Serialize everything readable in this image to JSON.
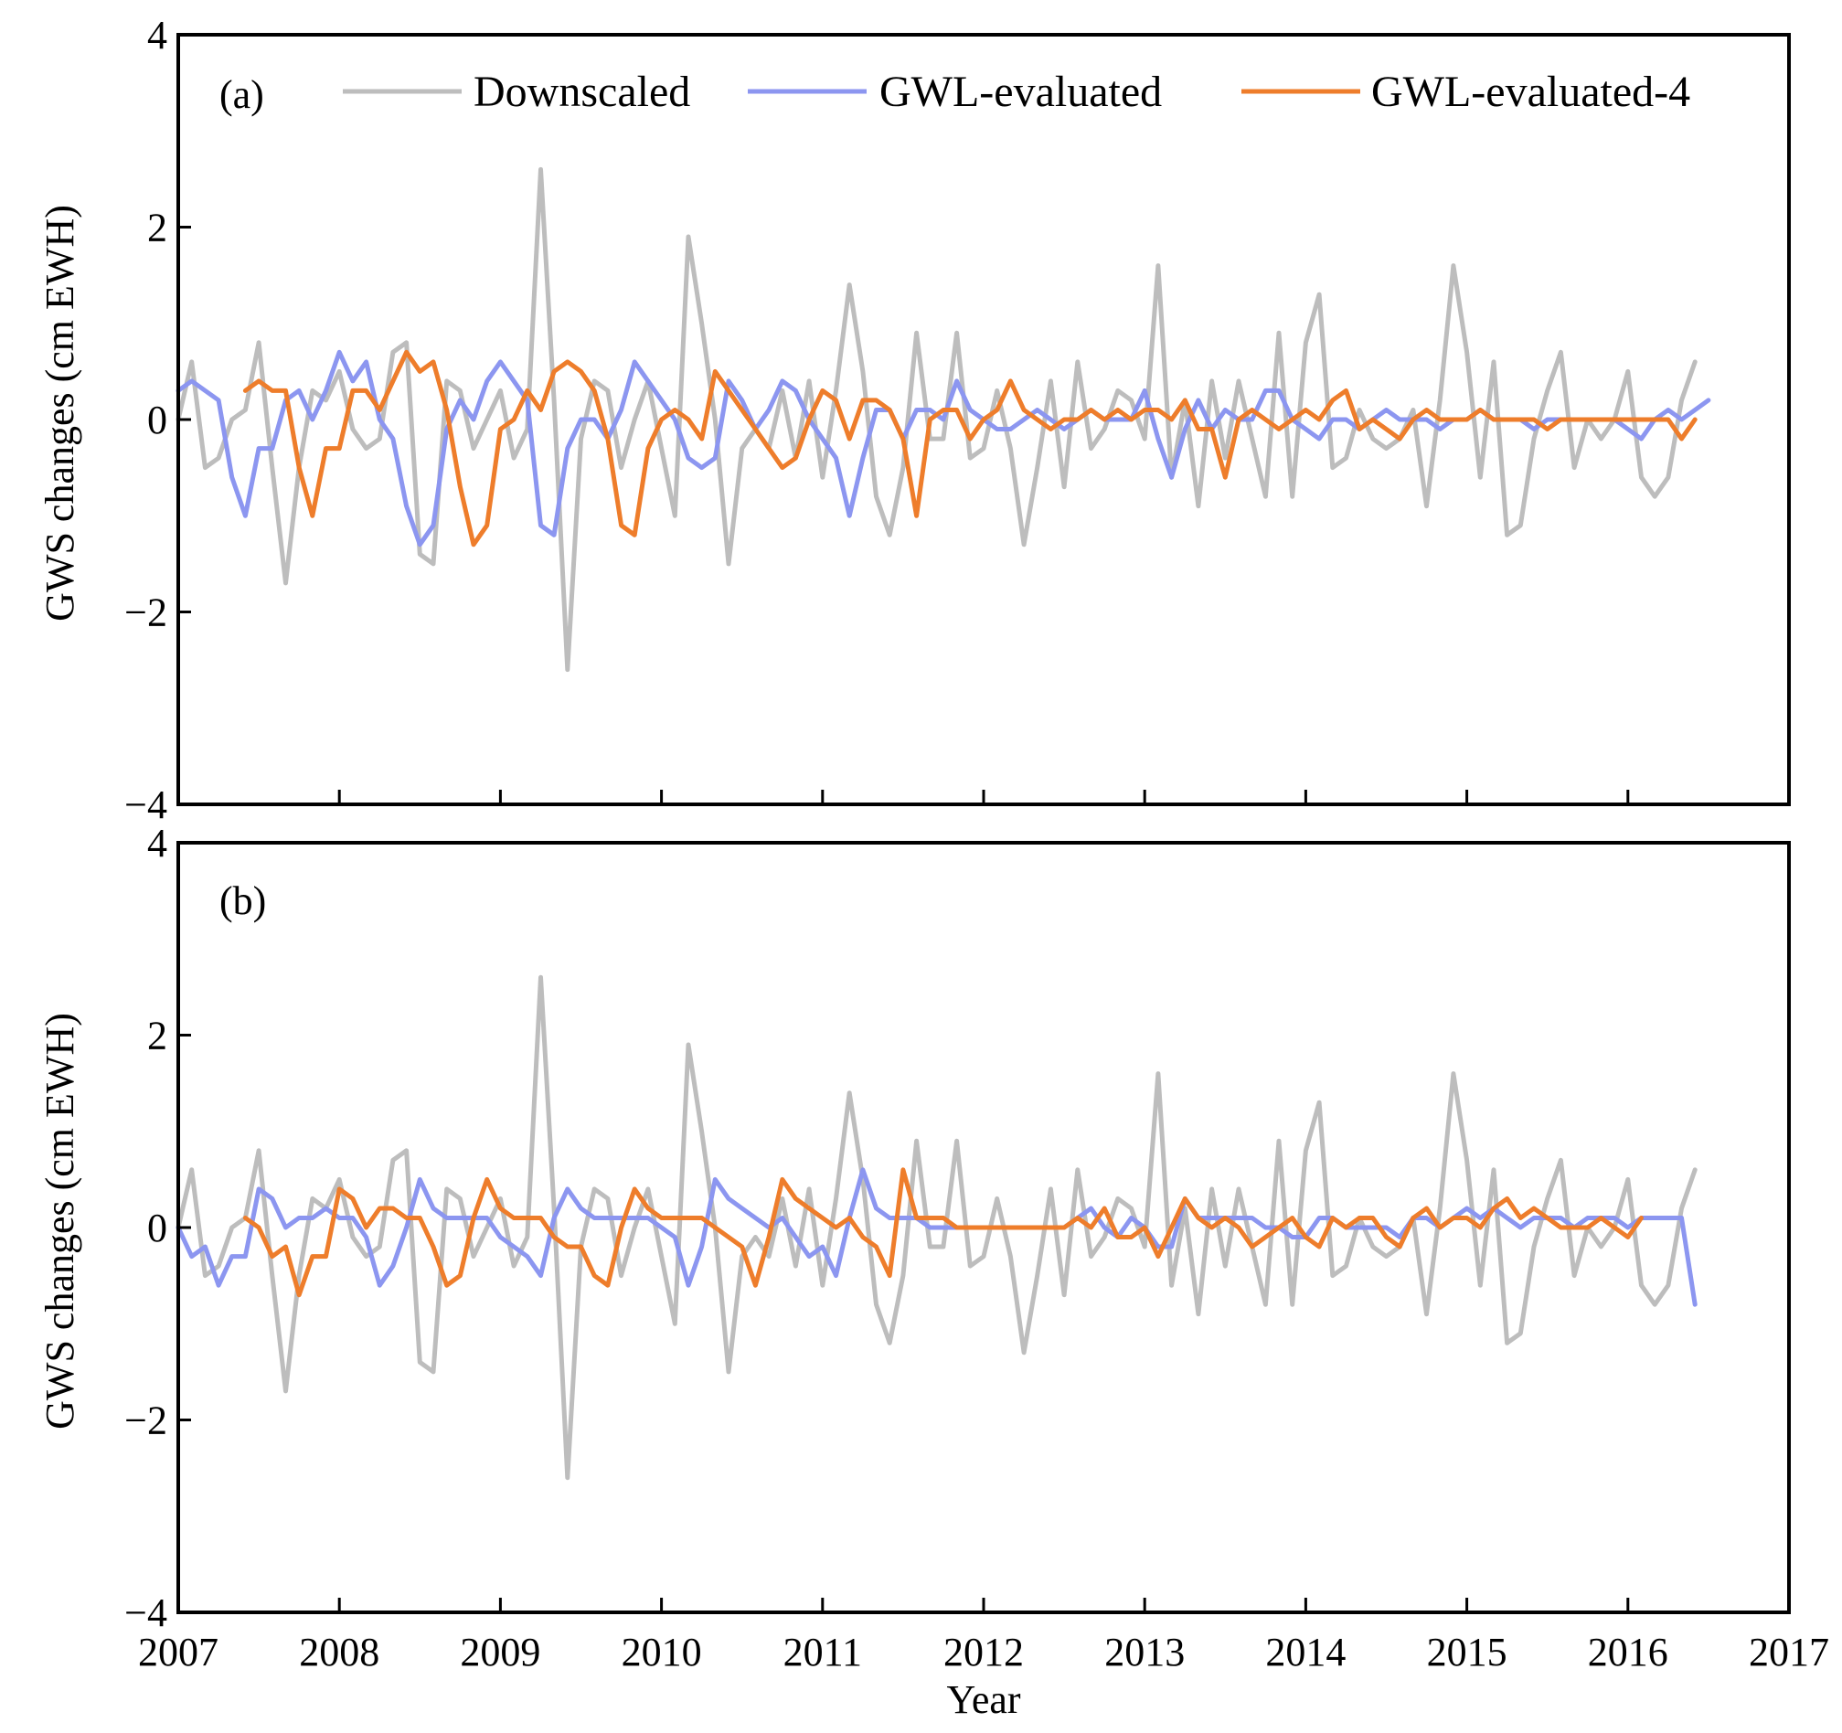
{
  "colors": {
    "downscaled": "#bdbdbd",
    "gwl": "#8c96f0",
    "gwl4": "#ee7d2b"
  },
  "chart_data": [
    {
      "type": "line",
      "panel_label": "(a)",
      "xlabel": "",
      "ylabel": "GWS changes (cm EWH)",
      "xlim": [
        2007,
        2017
      ],
      "ylim": [
        -4,
        4
      ],
      "yticks": [
        4,
        2,
        0,
        -2,
        -4
      ],
      "ytick_labels": [
        "4",
        "2",
        "0",
        "−2",
        "−4"
      ],
      "legend": {
        "placement": "top",
        "entries": [
          "Downscaled",
          "GWL-evaluated",
          "GWL-evaluated-4"
        ]
      },
      "series": [
        {
          "name": "Downscaled",
          "color_key": "downscaled",
          "start": 2007.0,
          "values": [
            0.0,
            0.6,
            -0.5,
            -0.4,
            0.0,
            0.1,
            0.8,
            -0.5,
            -1.7,
            -0.5,
            0.3,
            0.2,
            0.5,
            -0.1,
            -0.3,
            -0.2,
            0.7,
            0.8,
            -1.4,
            -1.5,
            0.4,
            0.3,
            -0.3,
            0.0,
            0.3,
            -0.4,
            -0.1,
            2.6,
            0.2,
            -2.6,
            -0.2,
            0.4,
            0.3,
            -0.5,
            0.0,
            0.4,
            -0.3,
            -1.0,
            1.9,
            1.0,
            0.0,
            -1.5,
            -0.3,
            -0.1,
            -0.3,
            0.3,
            -0.4,
            0.4,
            -0.6,
            0.3,
            1.4,
            0.5,
            -0.8,
            -1.2,
            -0.5,
            0.9,
            -0.2,
            -0.2,
            0.9,
            -0.4,
            -0.3,
            0.3,
            -0.3,
            -1.3,
            -0.5,
            0.4,
            -0.7,
            0.6,
            -0.3,
            -0.1,
            0.3,
            0.2,
            -0.2,
            1.6,
            -0.6,
            0.2,
            -0.9,
            0.4,
            -0.4,
            0.4,
            -0.2,
            -0.8,
            0.9,
            -0.8,
            0.8,
            1.3,
            -0.5,
            -0.4,
            0.1,
            -0.2,
            -0.3,
            -0.2,
            0.1,
            -0.9,
            0.2,
            1.6,
            0.7,
            -0.6,
            0.6,
            -1.2,
            -1.1,
            -0.2,
            0.3,
            0.7,
            -0.5,
            0.0,
            -0.2,
            0.0,
            0.5,
            -0.6,
            -0.8,
            -0.6,
            0.2,
            0.6
          ]
        },
        {
          "name": "GWL-evaluated",
          "color_key": "gwl",
          "start": 2007.0,
          "values": [
            0.3,
            0.4,
            0.3,
            0.2,
            -0.6,
            -1.0,
            -0.3,
            -0.3,
            0.2,
            0.3,
            0.0,
            0.3,
            0.7,
            0.4,
            0.6,
            0.0,
            -0.2,
            -0.9,
            -1.3,
            -1.1,
            -0.1,
            0.2,
            0.0,
            0.4,
            0.6,
            0.4,
            0.2,
            -1.1,
            -1.2,
            -0.3,
            0.0,
            0.0,
            -0.2,
            0.1,
            0.6,
            0.4,
            0.2,
            0.0,
            -0.4,
            -0.5,
            -0.4,
            0.4,
            0.2,
            -0.1,
            0.1,
            0.4,
            0.3,
            0.0,
            -0.2,
            -0.4,
            -1.0,
            -0.4,
            0.1,
            0.1,
            -0.2,
            0.1,
            0.1,
            0.0,
            0.4,
            0.1,
            0.0,
            -0.1,
            -0.1,
            0.0,
            0.1,
            0.0,
            -0.1,
            0.0,
            0.1,
            0.0,
            0.0,
            0.0,
            0.3,
            -0.2,
            -0.6,
            -0.1,
            0.2,
            -0.1,
            0.1,
            0.0,
            0.0,
            0.3,
            0.3,
            0.0,
            -0.1,
            -0.2,
            0.0,
            0.0,
            -0.1,
            0.0,
            0.1,
            0.0,
            0.0,
            0.0,
            -0.1,
            0.0,
            0.0,
            0.1,
            0.0,
            0.0,
            0.0,
            -0.1,
            0.0,
            0.0,
            0.0,
            0.0,
            0.0,
            0.0,
            -0.1,
            -0.2,
            0.0,
            0.1,
            0.0,
            0.1,
            0.2
          ]
        },
        {
          "name": "GWL-evaluated-4",
          "color_key": "gwl4",
          "start": 2007.4167,
          "values": [
            0.3,
            0.4,
            0.3,
            0.3,
            -0.5,
            -1.0,
            -0.3,
            -0.3,
            0.3,
            0.3,
            0.1,
            0.4,
            0.7,
            0.5,
            0.6,
            0.1,
            -0.7,
            -1.3,
            -1.1,
            -0.1,
            0.0,
            0.3,
            0.1,
            0.5,
            0.6,
            0.5,
            0.3,
            -0.2,
            -1.1,
            -1.2,
            -0.3,
            0.0,
            0.1,
            0.0,
            -0.2,
            0.5,
            0.3,
            0.1,
            -0.1,
            -0.3,
            -0.5,
            -0.4,
            0.0,
            0.3,
            0.2,
            -0.2,
            0.2,
            0.2,
            0.1,
            -0.2,
            -1.0,
            0.0,
            0.1,
            0.1,
            -0.2,
            0.0,
            0.1,
            0.4,
            0.1,
            0.0,
            -0.1,
            0.0,
            0.0,
            0.1,
            0.0,
            0.1,
            0.0,
            0.1,
            0.1,
            0.0,
            0.2,
            -0.1,
            -0.1,
            -0.6,
            0.0,
            0.1,
            0.0,
            -0.1,
            0.0,
            0.1,
            0.0,
            0.2,
            0.3,
            -0.1,
            0.0,
            -0.1,
            -0.2,
            0.0,
            0.1,
            0.0,
            0.0,
            0.0,
            0.1,
            0.0,
            0.0,
            0.0,
            0.0,
            -0.1,
            0.0,
            0.0,
            0.0,
            0.0,
            0.0,
            0.0,
            0.0,
            0.0,
            0.0,
            -0.2,
            0.0
          ]
        }
      ]
    },
    {
      "type": "line",
      "panel_label": "(b)",
      "xlabel": "Year",
      "ylabel": "GWS changes (cm EWH)",
      "xlim": [
        2007,
        2017
      ],
      "ylim": [
        -4,
        4
      ],
      "yticks": [
        4,
        2,
        0,
        -2,
        -4
      ],
      "ytick_labels": [
        "4",
        "2",
        "0",
        "−2",
        "−4"
      ],
      "xticks": [
        2007,
        2008,
        2009,
        2010,
        2011,
        2012,
        2013,
        2014,
        2015,
        2016,
        2017
      ],
      "xtick_labels": [
        "2007",
        "2008",
        "2009",
        "2010",
        "2011",
        "2012",
        "2013",
        "2014",
        "2015",
        "2016",
        "2017"
      ],
      "series": [
        {
          "name": "Downscaled",
          "color_key": "downscaled",
          "start": 2007.0,
          "values": [
            0.0,
            0.6,
            -0.5,
            -0.4,
            0.0,
            0.1,
            0.8,
            -0.5,
            -1.7,
            -0.5,
            0.3,
            0.2,
            0.5,
            -0.1,
            -0.3,
            -0.2,
            0.7,
            0.8,
            -1.4,
            -1.5,
            0.4,
            0.3,
            -0.3,
            0.0,
            0.3,
            -0.4,
            -0.1,
            2.6,
            0.2,
            -2.6,
            -0.2,
            0.4,
            0.3,
            -0.5,
            0.0,
            0.4,
            -0.3,
            -1.0,
            1.9,
            1.0,
            0.0,
            -1.5,
            -0.3,
            -0.1,
            -0.3,
            0.3,
            -0.4,
            0.4,
            -0.6,
            0.3,
            1.4,
            0.5,
            -0.8,
            -1.2,
            -0.5,
            0.9,
            -0.2,
            -0.2,
            0.9,
            -0.4,
            -0.3,
            0.3,
            -0.3,
            -1.3,
            -0.5,
            0.4,
            -0.7,
            0.6,
            -0.3,
            -0.1,
            0.3,
            0.2,
            -0.2,
            1.6,
            -0.6,
            0.2,
            -0.9,
            0.4,
            -0.4,
            0.4,
            -0.2,
            -0.8,
            0.9,
            -0.8,
            0.8,
            1.3,
            -0.5,
            -0.4,
            0.1,
            -0.2,
            -0.3,
            -0.2,
            0.1,
            -0.9,
            0.2,
            1.6,
            0.7,
            -0.6,
            0.6,
            -1.2,
            -1.1,
            -0.2,
            0.3,
            0.7,
            -0.5,
            0.0,
            -0.2,
            0.0,
            0.5,
            -0.6,
            -0.8,
            -0.6,
            0.2,
            0.6
          ]
        },
        {
          "name": "GWL-evaluated",
          "color_key": "gwl",
          "start": 2007.0,
          "values": [
            0.0,
            -0.3,
            -0.2,
            -0.6,
            -0.3,
            -0.3,
            0.4,
            0.3,
            0.0,
            0.1,
            0.1,
            0.2,
            0.1,
            0.1,
            -0.1,
            -0.6,
            -0.4,
            0.0,
            0.5,
            0.2,
            0.1,
            0.1,
            0.1,
            0.1,
            -0.1,
            -0.2,
            -0.3,
            -0.5,
            0.1,
            0.4,
            0.2,
            0.1,
            0.1,
            0.1,
            0.1,
            0.1,
            0.0,
            -0.1,
            -0.6,
            -0.2,
            0.5,
            0.3,
            0.2,
            0.1,
            0.0,
            0.1,
            -0.1,
            -0.3,
            -0.2,
            -0.5,
            0.1,
            0.6,
            0.2,
            0.1,
            0.1,
            0.1,
            0.0,
            0.0,
            0.0,
            0.0,
            0.0,
            0.0,
            0.0,
            0.0,
            0.0,
            0.0,
            0.0,
            0.1,
            0.2,
            0.0,
            -0.1,
            0.1,
            0.0,
            -0.2,
            -0.2,
            0.3,
            0.1,
            0.1,
            0.1,
            0.1,
            0.1,
            0.0,
            0.0,
            -0.1,
            -0.1,
            0.1,
            0.1,
            0.0,
            0.0,
            0.0,
            0.0,
            -0.1,
            0.1,
            0.1,
            0.0,
            0.1,
            0.2,
            0.1,
            0.2,
            0.1,
            0.0,
            0.1,
            0.1,
            0.1,
            0.0,
            0.1,
            0.1,
            0.1,
            0.0,
            0.1,
            0.1,
            0.1,
            0.1,
            -0.8
          ]
        },
        {
          "name": "GWL-evaluated-4",
          "color_key": "gwl4",
          "start": 2007.4167,
          "values": [
            0.1,
            0.0,
            -0.3,
            -0.2,
            -0.7,
            -0.3,
            -0.3,
            0.4,
            0.3,
            0.0,
            0.2,
            0.2,
            0.1,
            0.1,
            -0.2,
            -0.6,
            -0.5,
            0.1,
            0.5,
            0.2,
            0.1,
            0.1,
            0.1,
            -0.1,
            -0.2,
            -0.2,
            -0.5,
            -0.6,
            0.0,
            0.4,
            0.2,
            0.1,
            0.1,
            0.1,
            0.1,
            0.0,
            -0.1,
            -0.2,
            -0.6,
            -0.1,
            0.5,
            0.3,
            0.2,
            0.1,
            0.0,
            0.1,
            -0.1,
            -0.2,
            -0.5,
            0.6,
            0.1,
            0.1,
            0.1,
            0.0,
            0.0,
            0.0,
            0.0,
            0.0,
            0.0,
            0.0,
            0.0,
            0.0,
            0.1,
            0.0,
            0.2,
            -0.1,
            -0.1,
            0.0,
            -0.3,
            0.0,
            0.3,
            0.1,
            0.0,
            0.1,
            0.0,
            -0.2,
            -0.1,
            0.0,
            0.1,
            -0.1,
            -0.2,
            0.1,
            0.0,
            0.1,
            0.1,
            -0.1,
            -0.2,
            0.1,
            0.2,
            0.0,
            0.1,
            0.1,
            0.0,
            0.2,
            0.3,
            0.1,
            0.2,
            0.1,
            0.0,
            0.0,
            0.0,
            0.1,
            0.0,
            -0.1,
            0.1
          ]
        }
      ]
    }
  ]
}
